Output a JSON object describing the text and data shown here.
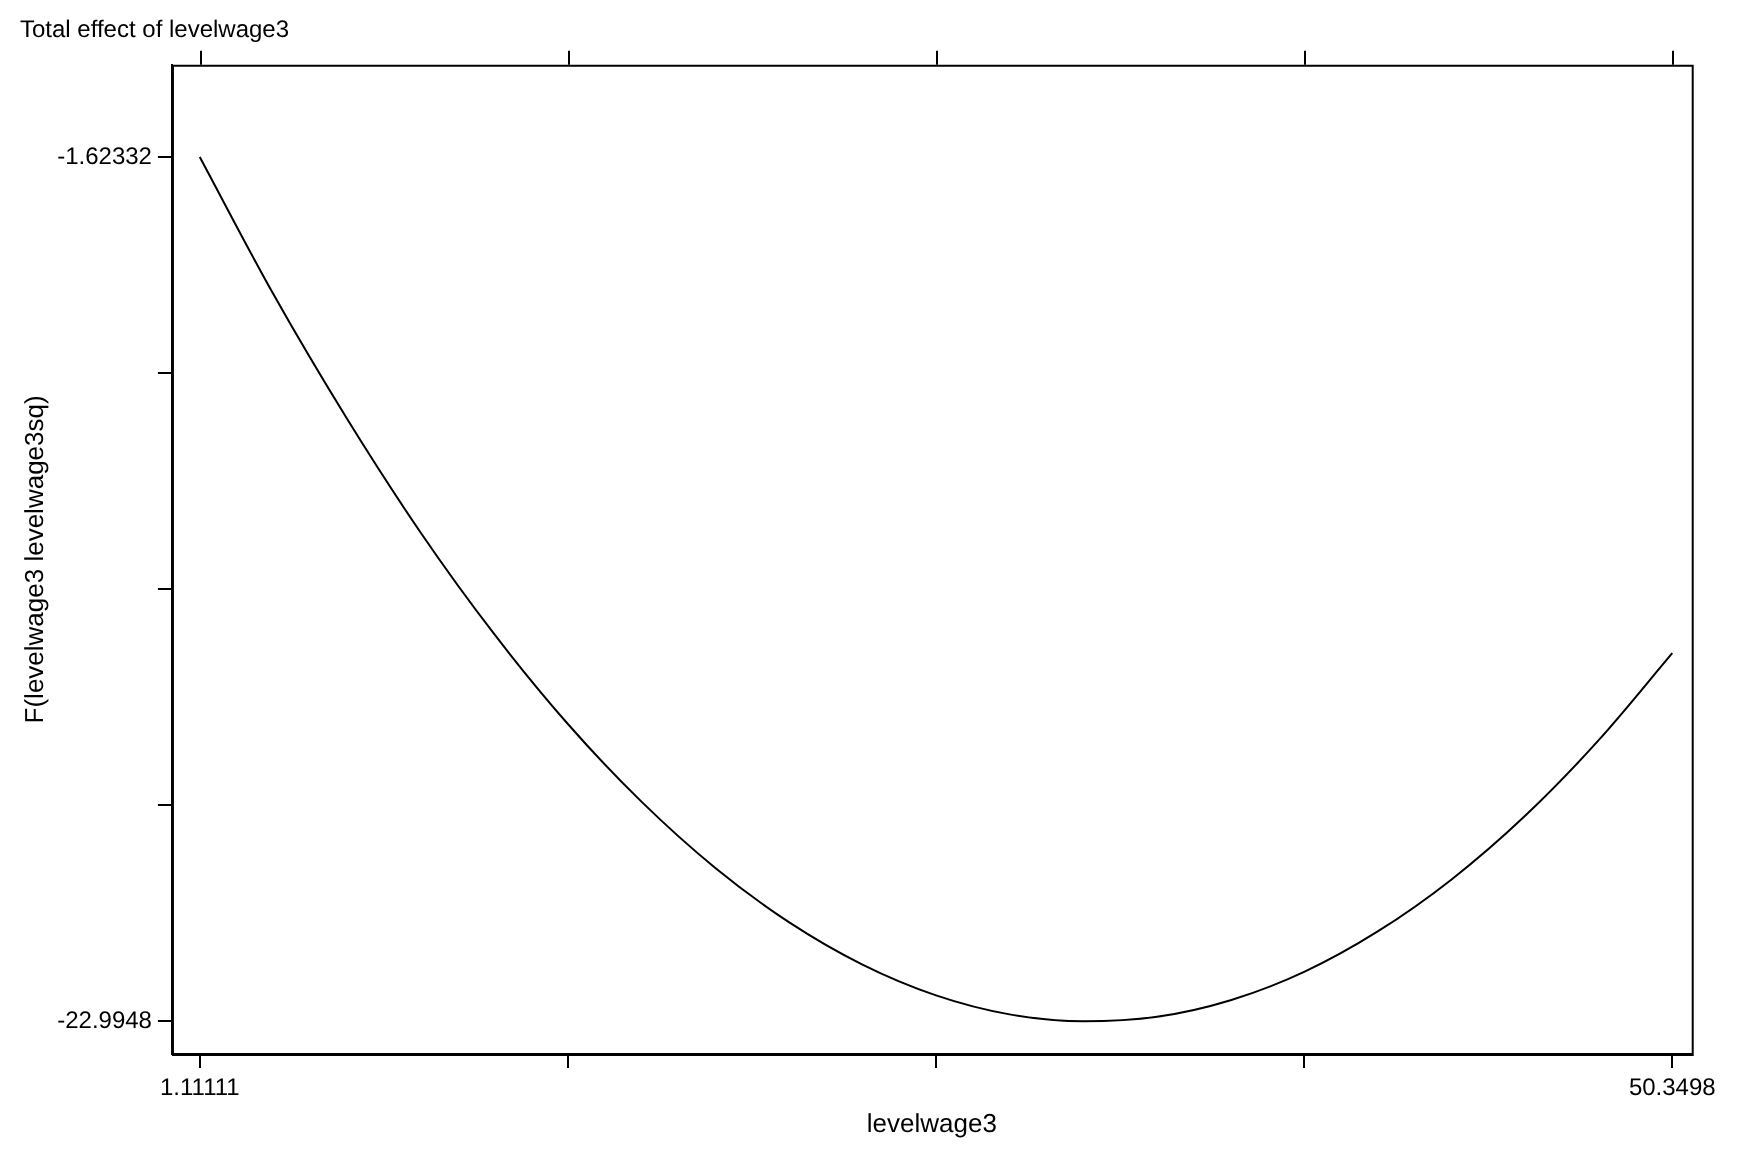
{
  "chart_data": {
    "type": "line",
    "title": "Total effect of levelwage3",
    "xlabel": "levelwage3",
    "ylabel": "F(levelwage3 levelwage3sq)",
    "x": [
      1.11,
      3.57,
      6.04,
      8.5,
      10.96,
      13.42,
      15.88,
      18.35,
      20.81,
      23.27,
      25.73,
      28.19,
      30.65,
      33.12,
      35.58,
      38.04,
      40.5,
      42.96,
      45.43,
      47.89,
      50.35
    ],
    "series": [
      {
        "color": "#000000",
        "values": [
          -1.62,
          -5.01,
          -8.1,
          -10.91,
          -13.42,
          -15.64,
          -17.56,
          -19.2,
          -20.54,
          -21.59,
          -22.35,
          -22.82,
          -22.99,
          -22.88,
          -22.47,
          -21.77,
          -20.77,
          -19.49,
          -17.91,
          -16.04,
          -13.89
        ]
      }
    ],
    "xlim": [
      0.18,
      51.0
    ],
    "ylim": [
      -23.8,
      0.66
    ],
    "xticks": [
      {
        "value": 1.11111,
        "label": "1.11111"
      },
      {
        "value": 13.42078,
        "label": null
      },
      {
        "value": 25.73045,
        "label": null
      },
      {
        "value": 38.04012,
        "label": null
      },
      {
        "value": 50.3498,
        "label": "50.3498"
      }
    ],
    "yticks": [
      {
        "value": -22.9948,
        "label": "-22.9948"
      },
      {
        "value": -17.65193,
        "label": null
      },
      {
        "value": -12.30906,
        "label": null
      },
      {
        "value": -6.96619,
        "label": null
      },
      {
        "value": -1.62332,
        "label": "-1.62332"
      }
    ],
    "grid": false,
    "legend": false,
    "marker": "none",
    "line_style": "solid"
  }
}
